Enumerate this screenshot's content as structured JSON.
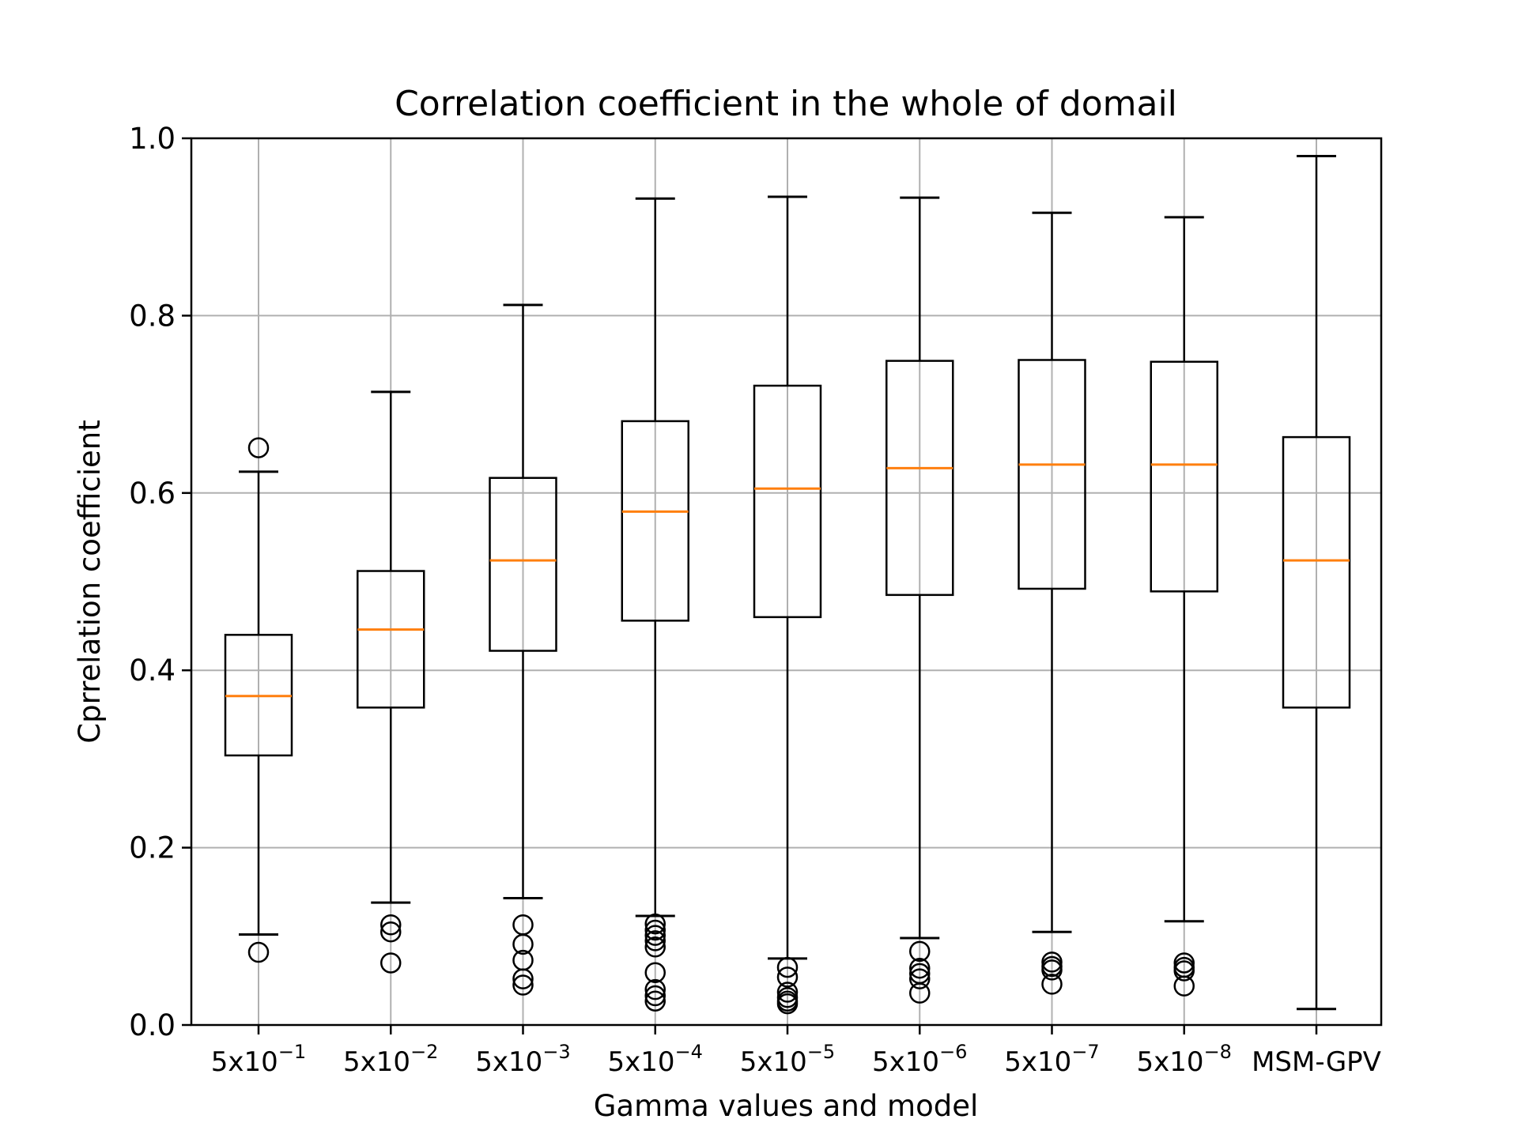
{
  "chart_data": {
    "type": "boxplot",
    "title": "Correlation coefficient in the whole of domail",
    "xlabel": "Gamma values and model",
    "ylabel": "Cprrelation coefficient",
    "ylim": [
      0.0,
      1.0
    ],
    "yticks": [
      0.0,
      0.2,
      0.4,
      0.6,
      0.8,
      1.0
    ],
    "ytick_labels": [
      "0.0",
      "0.2",
      "0.4",
      "0.6",
      "0.8",
      "1.0"
    ],
    "grid": true,
    "colors": {
      "box": "#000000",
      "median": "#ff7f0e",
      "grid": "#b0b0b0"
    },
    "categories": [
      {
        "base": "5x10",
        "exp": "−1"
      },
      {
        "base": "5x10",
        "exp": "−2"
      },
      {
        "base": "5x10",
        "exp": "−3"
      },
      {
        "base": "5x10",
        "exp": "−4"
      },
      {
        "base": "5x10",
        "exp": "−5"
      },
      {
        "base": "5x10",
        "exp": "−6"
      },
      {
        "base": "5x10",
        "exp": "−7"
      },
      {
        "base": "5x10",
        "exp": "−8"
      },
      {
        "base": "MSM-GPV",
        "exp": ""
      }
    ],
    "boxes": [
      {
        "whislo": 0.102,
        "q1": 0.304,
        "med": 0.371,
        "q3": 0.44,
        "whishi": 0.624,
        "fliers": [
          0.651,
          0.082
        ]
      },
      {
        "whislo": 0.138,
        "q1": 0.358,
        "med": 0.446,
        "q3": 0.512,
        "whishi": 0.714,
        "fliers": [
          0.113,
          0.105,
          0.07
        ]
      },
      {
        "whislo": 0.143,
        "q1": 0.422,
        "med": 0.524,
        "q3": 0.617,
        "whishi": 0.812,
        "fliers": [
          0.113,
          0.091,
          0.073,
          0.052,
          0.045
        ]
      },
      {
        "whislo": 0.123,
        "q1": 0.456,
        "med": 0.579,
        "q3": 0.681,
        "whishi": 0.932,
        "fliers": [
          0.114,
          0.107,
          0.101,
          0.095,
          0.088,
          0.059,
          0.04,
          0.033,
          0.027
        ]
      },
      {
        "whislo": 0.075,
        "q1": 0.46,
        "med": 0.605,
        "q3": 0.721,
        "whishi": 0.934,
        "fliers": [
          0.065,
          0.054,
          0.037,
          0.031,
          0.027,
          0.024
        ]
      },
      {
        "whislo": 0.098,
        "q1": 0.485,
        "med": 0.628,
        "q3": 0.749,
        "whishi": 0.933,
        "fliers": [
          0.083,
          0.064,
          0.058,
          0.052,
          0.036
        ]
      },
      {
        "whislo": 0.105,
        "q1": 0.492,
        "med": 0.632,
        "q3": 0.75,
        "whishi": 0.916,
        "fliers": [
          0.071,
          0.066,
          0.062,
          0.046
        ]
      },
      {
        "whislo": 0.117,
        "q1": 0.489,
        "med": 0.632,
        "q3": 0.748,
        "whishi": 0.911,
        "fliers": [
          0.07,
          0.065,
          0.061,
          0.044
        ]
      },
      {
        "whislo": 0.018,
        "q1": 0.358,
        "med": 0.524,
        "q3": 0.663,
        "whishi": 0.98,
        "fliers": []
      }
    ]
  }
}
